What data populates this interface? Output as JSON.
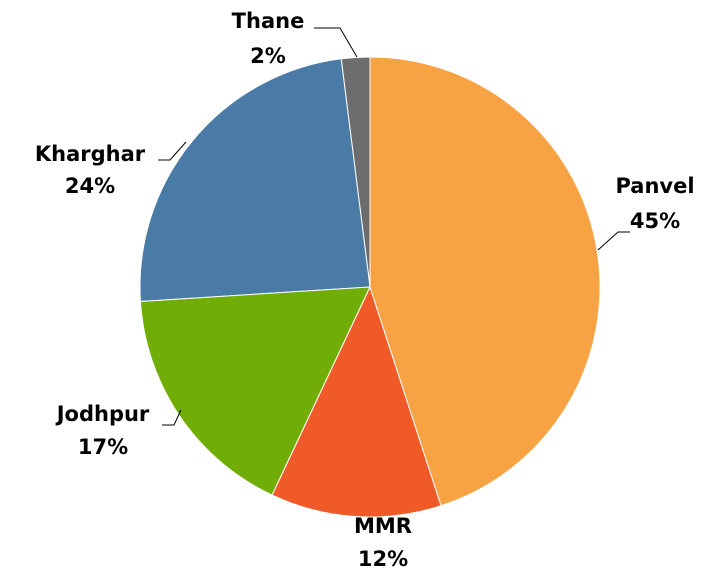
{
  "chart_data": {
    "type": "pie",
    "categories": [
      "Panvel",
      "MMR",
      "Jodhpur",
      "Kharghar",
      "Thane"
    ],
    "values": [
      45,
      12,
      17,
      24,
      2
    ],
    "value_labels": [
      "45%",
      "12%",
      "17%",
      "24%",
      "2%"
    ],
    "colors": [
      "#f7a243",
      "#ef5a28",
      "#70ad07",
      "#4a7ba6",
      "#6d6d6d"
    ]
  }
}
